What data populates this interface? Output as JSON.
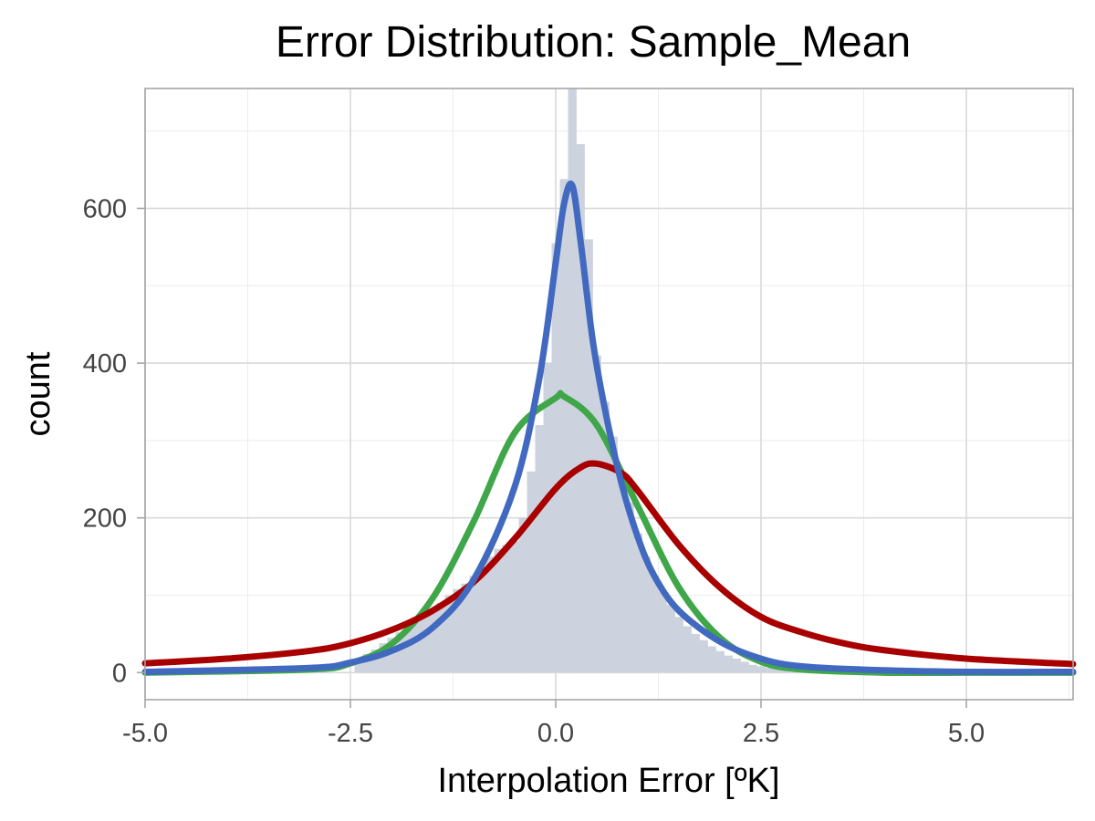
{
  "chart_data": {
    "type": "bar",
    "title": "Error Distribution: Sample_Mean",
    "xlabel": "Interpolation Error [ºK]",
    "ylabel": "count",
    "xlim": [
      -5.0,
      6.3
    ],
    "ylim": [
      -35,
      755
    ],
    "grid": true,
    "x_ticks": [
      -5.0,
      -2.5,
      0.0,
      2.5,
      5.0
    ],
    "x_tick_labels": [
      "-5.0",
      "-2.5",
      "0.0",
      "2.5",
      "5.0"
    ],
    "y_ticks": [
      0,
      200,
      400,
      600
    ],
    "y_tick_labels": [
      "0",
      "200",
      "400",
      "600"
    ],
    "histogram": {
      "color": "#cdd3de",
      "bin_width": 0.1,
      "bins": [
        {
          "x": -2.4,
          "count": 18
        },
        {
          "x": -2.3,
          "count": 24
        },
        {
          "x": -2.2,
          "count": 30
        },
        {
          "x": -2.1,
          "count": 38
        },
        {
          "x": -2.0,
          "count": 45
        },
        {
          "x": -1.9,
          "count": 52
        },
        {
          "x": -1.8,
          "count": 60
        },
        {
          "x": -1.7,
          "count": 72
        },
        {
          "x": -1.6,
          "count": 80
        },
        {
          "x": -1.5,
          "count": 78
        },
        {
          "x": -1.4,
          "count": 90
        },
        {
          "x": -1.3,
          "count": 100
        },
        {
          "x": -1.2,
          "count": 108
        },
        {
          "x": -1.1,
          "count": 115
        },
        {
          "x": -1.0,
          "count": 125
        },
        {
          "x": -0.9,
          "count": 135
        },
        {
          "x": -0.8,
          "count": 150
        },
        {
          "x": -0.7,
          "count": 160
        },
        {
          "x": -0.6,
          "count": 165
        },
        {
          "x": -0.5,
          "count": 170
        },
        {
          "x": -0.4,
          "count": 200
        },
        {
          "x": -0.3,
          "count": 260
        },
        {
          "x": -0.2,
          "count": 320
        },
        {
          "x": -0.1,
          "count": 400
        },
        {
          "x": 0.0,
          "count": 555
        },
        {
          "x": 0.1,
          "count": 638
        },
        {
          "x": 0.2,
          "count": 755
        },
        {
          "x": 0.3,
          "count": 683
        },
        {
          "x": 0.4,
          "count": 560
        },
        {
          "x": 0.5,
          "count": 410
        },
        {
          "x": 0.6,
          "count": 350
        },
        {
          "x": 0.7,
          "count": 305
        },
        {
          "x": 0.8,
          "count": 260
        },
        {
          "x": 0.9,
          "count": 220
        },
        {
          "x": 1.0,
          "count": 180
        },
        {
          "x": 1.1,
          "count": 150
        },
        {
          "x": 1.2,
          "count": 125
        },
        {
          "x": 1.3,
          "count": 105
        },
        {
          "x": 1.4,
          "count": 88
        },
        {
          "x": 1.5,
          "count": 72
        },
        {
          "x": 1.6,
          "count": 60
        },
        {
          "x": 1.7,
          "count": 50
        },
        {
          "x": 1.8,
          "count": 42
        },
        {
          "x": 1.9,
          "count": 34
        },
        {
          "x": 2.0,
          "count": 28
        },
        {
          "x": 2.1,
          "count": 22
        },
        {
          "x": 2.2,
          "count": 18
        },
        {
          "x": 2.3,
          "count": 14
        },
        {
          "x": 2.4,
          "count": 10
        },
        {
          "x": 2.5,
          "count": 8
        },
        {
          "x": 2.6,
          "count": 6
        },
        {
          "x": 2.7,
          "count": 5
        },
        {
          "x": 2.8,
          "count": 4
        },
        {
          "x": 2.9,
          "count": 3
        },
        {
          "x": 3.0,
          "count": 2
        }
      ]
    },
    "series": [
      {
        "color": "#3fa74a",
        "x": [
          -5.0,
          -3.0,
          -2.5,
          -2.0,
          -1.5,
          -1.0,
          -0.5,
          0.0,
          0.1,
          0.5,
          1.0,
          1.5,
          2.0,
          2.5,
          3.0,
          4.0,
          5.0,
          6.3
        ],
        "y": [
          0,
          4,
          12,
          37,
          96,
          195,
          310,
          355,
          357,
          320,
          215,
          110,
          45,
          14,
          4,
          0,
          0,
          0
        ]
      },
      {
        "color": "#a80000",
        "x": [
          -5.0,
          -4.0,
          -3.0,
          -2.5,
          -2.0,
          -1.5,
          -1.0,
          -0.5,
          0.0,
          0.3,
          0.5,
          0.8,
          1.0,
          1.5,
          2.0,
          2.5,
          3.0,
          3.5,
          4.0,
          5.0,
          6.3
        ],
        "y": [
          12,
          18,
          28,
          38,
          55,
          80,
          117,
          173,
          238,
          265,
          270,
          258,
          235,
          165,
          110,
          72,
          52,
          38,
          29,
          18,
          11
        ],
        "line": true
      },
      {
        "color": "#4169c0",
        "x": [
          -5.0,
          -3.0,
          -2.5,
          -2.0,
          -1.5,
          -1.0,
          -0.5,
          -0.2,
          0.0,
          0.1,
          0.2,
          0.3,
          0.45,
          0.6,
          0.8,
          1.0,
          1.2,
          1.5,
          2.0,
          2.5,
          3.0,
          4.0,
          5.0,
          6.3
        ],
        "y": [
          1,
          6,
          13,
          28,
          58,
          120,
          240,
          380,
          530,
          605,
          630,
          560,
          430,
          340,
          245,
          175,
          125,
          80,
          40,
          18,
          8,
          3,
          1,
          1
        ]
      }
    ]
  }
}
